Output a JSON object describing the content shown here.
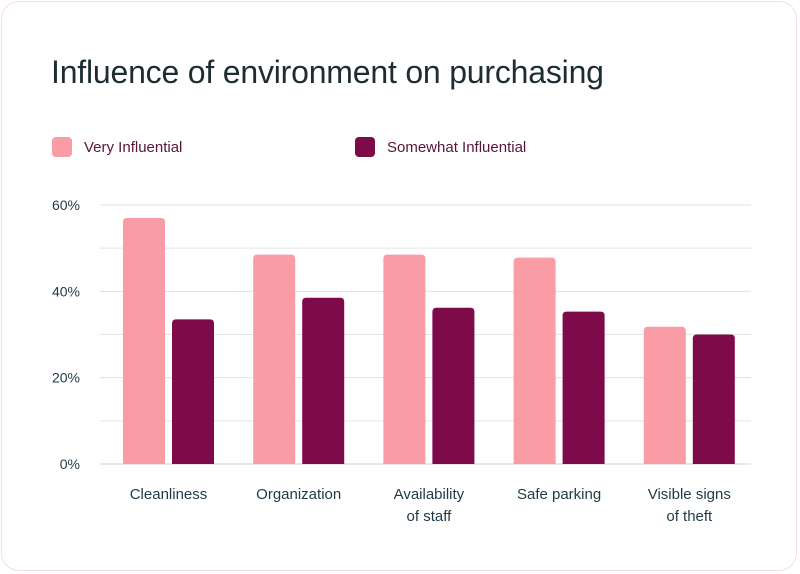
{
  "chart_data": {
    "type": "bar",
    "title": "Influence of environment on purchasing",
    "categories": [
      [
        "Cleanliness"
      ],
      [
        "Organization"
      ],
      [
        "Availability",
        "of staff"
      ],
      [
        "Safe parking"
      ],
      [
        "Visible signs",
        "of theft"
      ]
    ],
    "series": [
      {
        "name": "Very Influential",
        "color": "#f99ca5",
        "values": [
          57,
          48.5,
          48.5,
          47.8,
          31.8
        ]
      },
      {
        "name": "Somewhat Influential",
        "color": "#7d0b4a",
        "values": [
          33.5,
          38.5,
          36.2,
          35.3,
          30
        ]
      }
    ],
    "ylim": [
      0,
      60
    ],
    "yticks": [
      0,
      20,
      40,
      60
    ],
    "ytick_labels": [
      "0%",
      "20%",
      "40%",
      "60%"
    ],
    "minor_gridlines": [
      10,
      30,
      50
    ],
    "legend_position": "top-left",
    "grid": true
  }
}
